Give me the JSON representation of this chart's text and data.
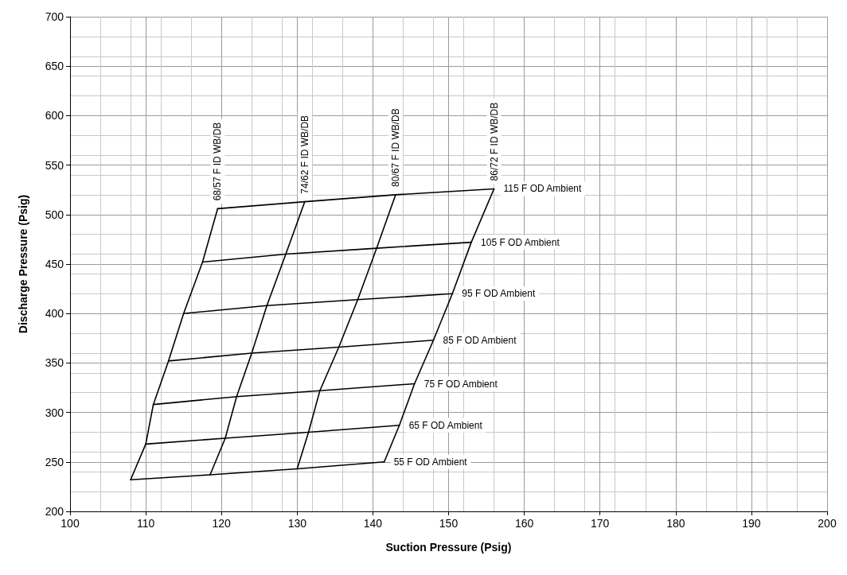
{
  "chart_data": {
    "type": "line",
    "xlabel": "Suction Pressure (Psig)",
    "ylabel": "Discharge Pressure (Psig)",
    "xlim": [
      100,
      200
    ],
    "xticks": [
      100,
      110,
      120,
      130,
      140,
      150,
      160,
      170,
      180,
      190,
      200
    ],
    "ylim": [
      200,
      700
    ],
    "yticks": [
      200,
      250,
      300,
      350,
      400,
      450,
      500,
      550,
      600,
      650,
      700
    ],
    "grid": true,
    "legend": false,
    "marker": "none",
    "line_style": "solid",
    "series": [
      {
        "name": "55 F OD Ambient",
        "color": "#000000",
        "x": [
          108,
          118.5,
          130,
          141.5
        ],
        "values": [
          232,
          237,
          243,
          250
        ]
      },
      {
        "name": "65 F OD Ambient",
        "color": "#000000",
        "x": [
          110,
          120.5,
          131.5,
          143.5
        ],
        "values": [
          268,
          274,
          280,
          287
        ]
      },
      {
        "name": "75 F OD Ambient",
        "color": "#000000",
        "x": [
          111,
          122,
          133,
          145.5
        ],
        "values": [
          308,
          316,
          322,
          329
        ]
      },
      {
        "name": "85 F OD Ambient",
        "color": "#000000",
        "x": [
          113,
          124,
          135.5,
          148
        ],
        "values": [
          352,
          360,
          366,
          373
        ]
      },
      {
        "name": "95 F OD Ambient",
        "color": "#000000",
        "x": [
          115,
          126,
          138,
          150.5
        ],
        "values": [
          400,
          408,
          414,
          420
        ]
      },
      {
        "name": "105 F OD Ambient",
        "color": "#000000",
        "x": [
          117.5,
          128.5,
          140.5,
          153
        ],
        "values": [
          452,
          460,
          466,
          472
        ]
      },
      {
        "name": "115 F OD Ambient",
        "color": "#000000",
        "x": [
          119.5,
          131,
          143,
          156
        ],
        "values": [
          506,
          513,
          520,
          526
        ]
      },
      {
        "name": "68/57 F ID WB/DB",
        "color": "#000000",
        "x": [
          108,
          110,
          111,
          113,
          115,
          117.5,
          119.5
        ],
        "values": [
          232,
          268,
          308,
          352,
          400,
          452,
          506
        ]
      },
      {
        "name": "74/62 F ID WB/DB",
        "color": "#000000",
        "x": [
          118.5,
          120.5,
          122,
          124,
          126,
          128.5,
          131
        ],
        "values": [
          237,
          274,
          316,
          360,
          408,
          460,
          513
        ]
      },
      {
        "name": "80/67 F ID WB/DB",
        "color": "#000000",
        "x": [
          130,
          131.5,
          133,
          135.5,
          138,
          140.5,
          143
        ],
        "values": [
          243,
          280,
          322,
          366,
          414,
          466,
          520
        ]
      },
      {
        "name": "86/72 F ID WB/DB",
        "color": "#000000",
        "x": [
          141.5,
          143.5,
          145.5,
          148,
          150.5,
          153,
          156
        ],
        "values": [
          250,
          287,
          329,
          373,
          420,
          472,
          526
        ]
      }
    ]
  }
}
